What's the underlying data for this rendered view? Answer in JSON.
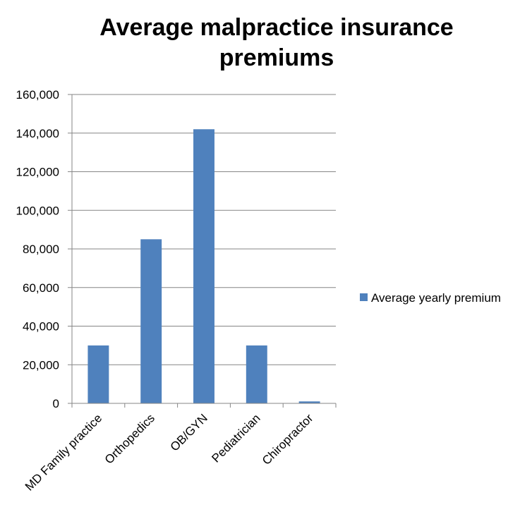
{
  "chart_data": {
    "type": "bar",
    "title_lines": [
      "Average malpractice insurance",
      "premiums"
    ],
    "categories": [
      "MD Family practice",
      "Orthopedics",
      "OB/GYN",
      "Pediatrician",
      "Chiropractor"
    ],
    "series": [
      {
        "name": "Average yearly premium",
        "values": [
          30000,
          85000,
          142000,
          30000,
          1000
        ],
        "color": "#4F81BD"
      }
    ],
    "y_ticks": [
      "0",
      "20,000",
      "40,000",
      "60,000",
      "80,000",
      "100,000",
      "120,000",
      "140,000",
      "160,000"
    ],
    "ylim": [
      0,
      160000
    ],
    "y_step": 20000,
    "grid": true,
    "grid_color": "#868686",
    "legend_position": "right",
    "xlabel": "",
    "ylabel": ""
  }
}
